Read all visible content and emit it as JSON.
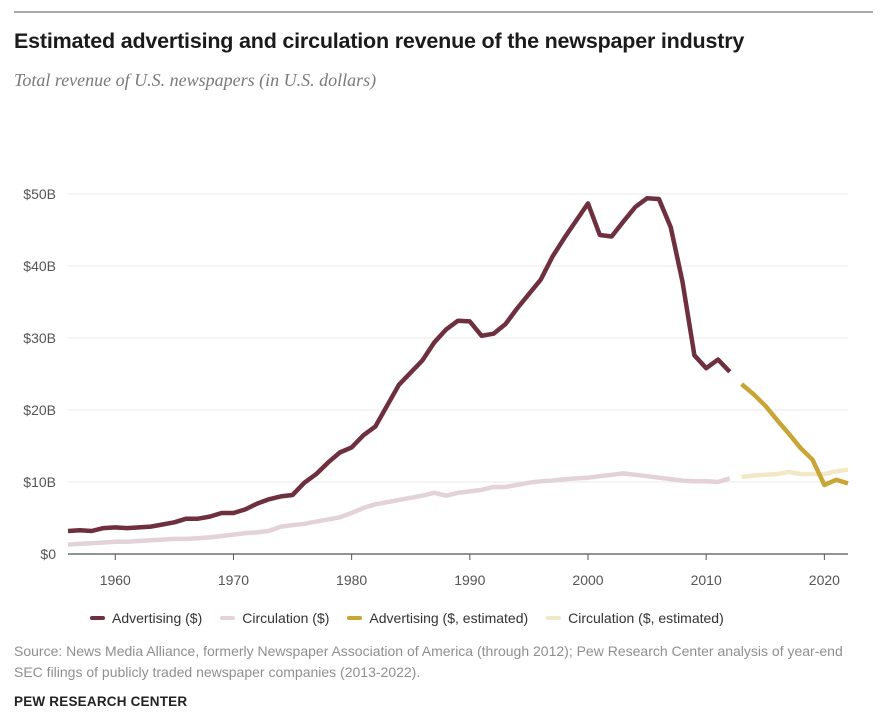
{
  "header": {
    "title": "Estimated advertising and circulation revenue of the newspaper industry",
    "subtitle": "Total revenue of U.S. newspapers (in U.S. dollars)"
  },
  "chart_data": {
    "type": "line",
    "title": "Estimated advertising and circulation revenue of the newspaper industry",
    "subtitle": "Total revenue of U.S. newspapers (in U.S. dollars)",
    "xlabel": "",
    "ylabel": "",
    "xlim": [
      1956,
      2022
    ],
    "ylim": [
      0,
      50
    ],
    "x_ticks": [
      1960,
      1970,
      1980,
      1990,
      2000,
      2010,
      2020
    ],
    "y_ticks": [
      0,
      10,
      20,
      30,
      40,
      50
    ],
    "y_tick_labels": [
      "$0",
      "$10B",
      "$20B",
      "$30B",
      "$40B",
      "$50B"
    ],
    "grid": "horizontal",
    "legend_position": "bottom",
    "series": [
      {
        "name": "Advertising ($)",
        "color": "#6e2f3f",
        "x": [
          1956,
          1957,
          1958,
          1959,
          1960,
          1961,
          1962,
          1963,
          1964,
          1965,
          1966,
          1967,
          1968,
          1969,
          1970,
          1971,
          1972,
          1973,
          1974,
          1975,
          1976,
          1977,
          1978,
          1979,
          1980,
          1981,
          1982,
          1983,
          1984,
          1985,
          1986,
          1987,
          1988,
          1989,
          1990,
          1991,
          1992,
          1993,
          1994,
          1995,
          1996,
          1997,
          1998,
          1999,
          2000,
          2001,
          2002,
          2003,
          2004,
          2005,
          2006,
          2007,
          2008,
          2009,
          2010,
          2011,
          2012
        ],
        "values": [
          3.2,
          3.3,
          3.2,
          3.6,
          3.7,
          3.6,
          3.7,
          3.8,
          4.1,
          4.4,
          4.9,
          4.9,
          5.2,
          5.7,
          5.7,
          6.2,
          7.0,
          7.6,
          8.0,
          8.2,
          9.9,
          11.1,
          12.7,
          14.1,
          14.8,
          16.5,
          17.7,
          20.6,
          23.5,
          25.2,
          26.9,
          29.4,
          31.2,
          32.4,
          32.3,
          30.3,
          30.6,
          31.9,
          34.1,
          36.1,
          38.1,
          41.3,
          43.9,
          46.3,
          48.7,
          44.3,
          44.1,
          46.2,
          48.2,
          49.4,
          49.3,
          45.4,
          37.8,
          27.6,
          25.8,
          27.0,
          25.3
        ]
      },
      {
        "name": "Circulation ($)",
        "color": "#e3d2d7",
        "x": [
          1956,
          1957,
          1958,
          1959,
          1960,
          1961,
          1962,
          1963,
          1964,
          1965,
          1966,
          1967,
          1968,
          1969,
          1970,
          1971,
          1972,
          1973,
          1974,
          1975,
          1976,
          1977,
          1978,
          1979,
          1980,
          1981,
          1982,
          1983,
          1984,
          1985,
          1986,
          1987,
          1988,
          1989,
          1990,
          1991,
          1992,
          1993,
          1994,
          1995,
          1996,
          1997,
          1998,
          1999,
          2000,
          2001,
          2002,
          2003,
          2004,
          2005,
          2006,
          2007,
          2008,
          2009,
          2010,
          2011,
          2012
        ],
        "values": [
          1.3,
          1.4,
          1.5,
          1.6,
          1.7,
          1.7,
          1.8,
          1.9,
          2.0,
          2.1,
          2.1,
          2.2,
          2.3,
          2.5,
          2.7,
          2.9,
          3.0,
          3.2,
          3.8,
          4.0,
          4.2,
          4.5,
          4.8,
          5.1,
          5.7,
          6.4,
          6.9,
          7.2,
          7.5,
          7.8,
          8.1,
          8.5,
          8.1,
          8.5,
          8.7,
          8.9,
          9.3,
          9.3,
          9.6,
          9.9,
          10.1,
          10.2,
          10.4,
          10.5,
          10.6,
          10.8,
          11.0,
          11.2,
          11.0,
          10.8,
          10.6,
          10.4,
          10.2,
          10.1,
          10.1,
          10.0,
          10.5
        ]
      },
      {
        "name": "Advertising ($, estimated)",
        "color": "#c9a535",
        "x": [
          2013,
          2014,
          2015,
          2016,
          2017,
          2018,
          2019,
          2020,
          2021,
          2022
        ],
        "values": [
          23.6,
          22.2,
          20.6,
          18.6,
          16.7,
          14.7,
          13.1,
          9.6,
          10.3,
          9.8
        ]
      },
      {
        "name": "Circulation ($, estimated)",
        "color": "#f2e8c6",
        "x": [
          2013,
          2014,
          2015,
          2016,
          2017,
          2018,
          2019,
          2020,
          2021,
          2022
        ],
        "values": [
          10.7,
          10.9,
          11.0,
          11.1,
          11.4,
          11.1,
          11.1,
          11.1,
          11.5,
          11.7
        ]
      }
    ]
  },
  "source": "Source: News Media Alliance, formerly Newspaper Association of America (through 2012); Pew Research Center analysis of year-end SEC filings of publicly traded newspaper companies (2013-2022).",
  "footer": "PEW RESEARCH CENTER"
}
